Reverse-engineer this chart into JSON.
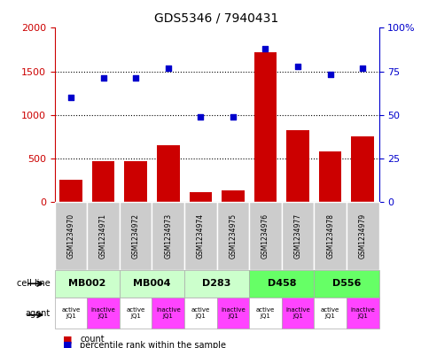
{
  "title": "GDS5346 / 7940431",
  "samples": [
    "GSM1234970",
    "GSM1234971",
    "GSM1234972",
    "GSM1234973",
    "GSM1234974",
    "GSM1234975",
    "GSM1234976",
    "GSM1234977",
    "GSM1234978",
    "GSM1234979"
  ],
  "counts": [
    250,
    470,
    470,
    650,
    110,
    130,
    1720,
    820,
    580,
    750
  ],
  "percentile_ranks": [
    60,
    71,
    71,
    77,
    49,
    49,
    88,
    78,
    73,
    77
  ],
  "bar_color": "#cc0000",
  "dot_color": "#0000cc",
  "ylim_left": [
    0,
    2000
  ],
  "ylim_right": [
    0,
    100
  ],
  "yticks_left": [
    0,
    500,
    1000,
    1500,
    2000
  ],
  "yticks_right": [
    0,
    25,
    50,
    75,
    100
  ],
  "ytick_labels_left": [
    "0",
    "500",
    "1000",
    "1500",
    "2000"
  ],
  "ytick_labels_right": [
    "0",
    "25",
    "50",
    "75",
    "100%"
  ],
  "cell_lines": [
    {
      "name": "MB002",
      "cols": [
        0,
        1
      ],
      "color": "#ccffcc"
    },
    {
      "name": "MB004",
      "cols": [
        2,
        3
      ],
      "color": "#ccffcc"
    },
    {
      "name": "D283",
      "cols": [
        4,
        5
      ],
      "color": "#ccffcc"
    },
    {
      "name": "D458",
      "cols": [
        6,
        7
      ],
      "color": "#66ff66"
    },
    {
      "name": "D556",
      "cols": [
        8,
        9
      ],
      "color": "#66ff66"
    }
  ],
  "agents": [
    {
      "label": "active\nJQ1",
      "color": "#ffffff"
    },
    {
      "label": "inactive\nJQ1",
      "color": "#ff44ff"
    },
    {
      "label": "active\nJQ1",
      "color": "#ffffff"
    },
    {
      "label": "inactive\nJQ1",
      "color": "#ff44ff"
    },
    {
      "label": "active\nJQ1",
      "color": "#ffffff"
    },
    {
      "label": "inactive\nJQ1",
      "color": "#ff44ff"
    },
    {
      "label": "active\nJQ1",
      "color": "#ffffff"
    },
    {
      "label": "inactive\nJQ1",
      "color": "#ff44ff"
    },
    {
      "label": "active\nJQ1",
      "color": "#ffffff"
    },
    {
      "label": "inactive\nJQ1",
      "color": "#ff44ff"
    }
  ],
  "sample_box_color": "#cccccc",
  "cell_line_label": "cell line",
  "agent_label": "agent",
  "legend_count_label": "count",
  "legend_pct_label": "percentile rank within the sample",
  "bg_color": "#ffffff",
  "axis_left_color": "#cc0000",
  "axis_right_color": "#0000cc"
}
